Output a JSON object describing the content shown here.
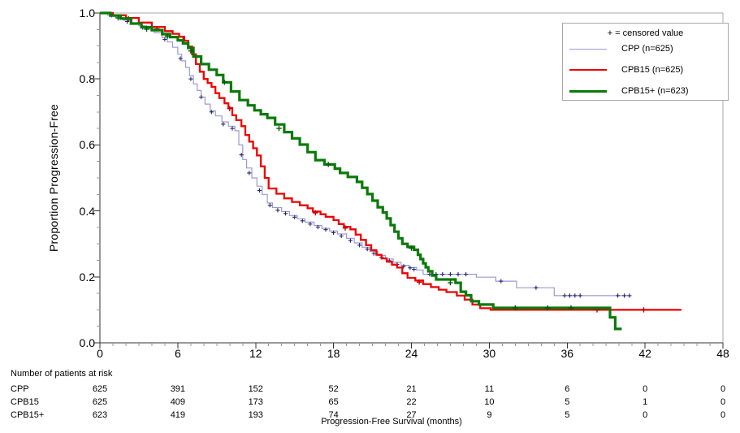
{
  "chart_data": {
    "type": "line",
    "subtype": "kaplan-meier-step",
    "title": "",
    "xlabel": "Progression-Free Survival (months)",
    "ylabel": "Proportion Progression-Free",
    "xlim": [
      0,
      48
    ],
    "ylim": [
      0.0,
      1.0
    ],
    "x_ticks": [
      0,
      6,
      12,
      18,
      24,
      30,
      36,
      42,
      48
    ],
    "x_minor_step": 1,
    "y_ticks": [
      0.0,
      0.2,
      0.4,
      0.6,
      0.8,
      1.0
    ],
    "y_tick_labels": [
      "0.0",
      "0.2",
      "0.4",
      "0.6",
      "0.8",
      "1.0"
    ],
    "y_minor_step": 0.05,
    "grid": false,
    "frame_color": "#a9a9a9",
    "axis_color": "#333333",
    "minor_tick_color": "#999999",
    "legend": {
      "position": "top-right-inside",
      "note": "+ = censored value"
    },
    "series": [
      {
        "name": "CPP (n=625)",
        "color": "#9a9ad2",
        "censor_color": "#26266e",
        "line_width": 1.2,
        "end": 40.8,
        "steps": [
          [
            0,
            1
          ],
          [
            0.6,
            0.993
          ],
          [
            1.2,
            0.986
          ],
          [
            1.8,
            0.978
          ],
          [
            2.4,
            0.97
          ],
          [
            3,
            0.961
          ],
          [
            3.6,
            0.951
          ],
          [
            4.2,
            0.94
          ],
          [
            4.8,
            0.925
          ],
          [
            5.2,
            0.912
          ],
          [
            5.6,
            0.896
          ],
          [
            6,
            0.875
          ],
          [
            6.3,
            0.855
          ],
          [
            6.6,
            0.835
          ],
          [
            6.9,
            0.81
          ],
          [
            7.2,
            0.785
          ],
          [
            7.5,
            0.765
          ],
          [
            7.8,
            0.745
          ],
          [
            8.1,
            0.724
          ],
          [
            8.5,
            0.703
          ],
          [
            8.9,
            0.688
          ],
          [
            9.4,
            0.67
          ],
          [
            9.9,
            0.657
          ],
          [
            10.4,
            0.643
          ],
          [
            10.7,
            0.6
          ],
          [
            11,
            0.556
          ],
          [
            11.3,
            0.53
          ],
          [
            11.7,
            0.5
          ],
          [
            12.1,
            0.475
          ],
          [
            12.5,
            0.45
          ],
          [
            12.9,
            0.424
          ],
          [
            13.3,
            0.41
          ],
          [
            14,
            0.398
          ],
          [
            14.6,
            0.386
          ],
          [
            15.2,
            0.376
          ],
          [
            15.8,
            0.366
          ],
          [
            16.5,
            0.356
          ],
          [
            17.1,
            0.347
          ],
          [
            17.7,
            0.339
          ],
          [
            18.3,
            0.33
          ],
          [
            19,
            0.317
          ],
          [
            19.6,
            0.303
          ],
          [
            20.2,
            0.29
          ],
          [
            20.8,
            0.277
          ],
          [
            21.4,
            0.265
          ],
          [
            22,
            0.254
          ],
          [
            22.6,
            0.244
          ],
          [
            23.2,
            0.235
          ],
          [
            23.8,
            0.228
          ],
          [
            24.4,
            0.221
          ],
          [
            24.9,
            0.208
          ],
          [
            29,
            0.199
          ],
          [
            30.5,
            0.187
          ],
          [
            32.1,
            0.167
          ],
          [
            35,
            0.143
          ]
        ],
        "censors": [
          [
            0.9,
            0.993
          ],
          [
            2.1,
            0.974
          ],
          [
            3.3,
            0.956
          ],
          [
            5,
            0.92
          ],
          [
            6.2,
            0.862
          ],
          [
            7,
            0.8
          ],
          [
            7.8,
            0.745
          ],
          [
            8.6,
            0.7
          ],
          [
            9.5,
            0.663
          ],
          [
            10.2,
            0.65
          ],
          [
            10.9,
            0.57
          ],
          [
            11.5,
            0.515
          ],
          [
            12.3,
            0.462
          ],
          [
            13.1,
            0.417
          ],
          [
            13.7,
            0.402
          ],
          [
            14.3,
            0.392
          ],
          [
            15,
            0.381
          ],
          [
            15.6,
            0.37
          ],
          [
            16.2,
            0.36
          ],
          [
            16.8,
            0.351
          ],
          [
            17.4,
            0.343
          ],
          [
            18,
            0.334
          ],
          [
            18.6,
            0.324
          ],
          [
            19.3,
            0.31
          ],
          [
            20,
            0.296
          ],
          [
            20.6,
            0.284
          ],
          [
            21.1,
            0.271
          ],
          [
            21.7,
            0.259
          ],
          [
            22.3,
            0.249
          ],
          [
            22.9,
            0.238
          ],
          [
            23.4,
            0.232
          ],
          [
            23.9,
            0.227
          ],
          [
            24.2,
            0.223
          ],
          [
            25.4,
            0.208
          ],
          [
            25.9,
            0.208
          ],
          [
            26.4,
            0.208
          ],
          [
            27,
            0.208
          ],
          [
            27.6,
            0.208
          ],
          [
            28.2,
            0.208
          ],
          [
            30.9,
            0.187
          ],
          [
            33.6,
            0.167
          ],
          [
            35.8,
            0.143
          ],
          [
            36.2,
            0.143
          ],
          [
            36.6,
            0.143
          ],
          [
            37,
            0.143
          ],
          [
            39.9,
            0.143
          ],
          [
            40.4,
            0.143
          ],
          [
            40.8,
            0.143
          ]
        ]
      },
      {
        "name": "CPB15 (n=625)",
        "color": "#ee0000",
        "censor_color": "#c40000",
        "line_width": 2.3,
        "end": 44.8,
        "steps": [
          [
            0,
            1
          ],
          [
            1,
            0.993
          ],
          [
            2,
            0.985
          ],
          [
            3,
            0.971
          ],
          [
            4,
            0.958
          ],
          [
            5,
            0.945
          ],
          [
            5.6,
            0.937
          ],
          [
            6.1,
            0.928
          ],
          [
            6.5,
            0.916
          ],
          [
            6.8,
            0.898
          ],
          [
            7.1,
            0.875
          ],
          [
            7.4,
            0.845
          ],
          [
            7.7,
            0.822
          ],
          [
            8,
            0.8
          ],
          [
            8.3,
            0.788
          ],
          [
            8.6,
            0.776
          ],
          [
            8.9,
            0.757
          ],
          [
            9.2,
            0.742
          ],
          [
            9.6,
            0.726
          ],
          [
            9.9,
            0.712
          ],
          [
            10.2,
            0.69
          ],
          [
            10.5,
            0.675
          ],
          [
            10.9,
            0.657
          ],
          [
            11.2,
            0.63
          ],
          [
            11.5,
            0.61
          ],
          [
            11.8,
            0.59
          ],
          [
            12.1,
            0.568
          ],
          [
            12.4,
            0.535
          ],
          [
            12.7,
            0.5
          ],
          [
            13,
            0.468
          ],
          [
            13.6,
            0.452
          ],
          [
            14.2,
            0.438
          ],
          [
            14.8,
            0.427
          ],
          [
            15.4,
            0.417
          ],
          [
            16,
            0.408
          ],
          [
            16.4,
            0.398
          ],
          [
            17,
            0.39
          ],
          [
            17.4,
            0.382
          ],
          [
            18,
            0.372
          ],
          [
            18.4,
            0.36
          ],
          [
            18.8,
            0.352
          ],
          [
            19.3,
            0.344
          ],
          [
            19.7,
            0.328
          ],
          [
            20.1,
            0.312
          ],
          [
            20.5,
            0.296
          ],
          [
            20.9,
            0.281
          ],
          [
            21.3,
            0.267
          ],
          [
            21.7,
            0.256
          ],
          [
            22.1,
            0.246
          ],
          [
            22.5,
            0.237
          ],
          [
            22.9,
            0.228
          ],
          [
            23.3,
            0.211
          ],
          [
            23.7,
            0.197
          ],
          [
            24.3,
            0.189
          ],
          [
            24.9,
            0.178
          ],
          [
            25.5,
            0.169
          ],
          [
            26.1,
            0.161
          ],
          [
            26.7,
            0.154
          ],
          [
            27.5,
            0.143
          ],
          [
            28.1,
            0.131
          ],
          [
            28.7,
            0.116
          ],
          [
            29.3,
            0.105
          ],
          [
            30.1,
            0.1
          ]
        ],
        "censors": [
          [
            2.2,
            0.983
          ],
          [
            4.4,
            0.952
          ],
          [
            6.4,
            0.918
          ],
          [
            10,
            0.71
          ],
          [
            16.6,
            0.394
          ],
          [
            18.9,
            0.348
          ],
          [
            24.6,
            0.184
          ],
          [
            38.3,
            0.1
          ],
          [
            41.9,
            0.1
          ]
        ]
      },
      {
        "name": "CPB15+ (n=623)",
        "color": "#0a7a0a",
        "censor_color": "#075807",
        "line_width": 3.2,
        "end": 40.2,
        "steps": [
          [
            0,
            1
          ],
          [
            0.8,
            0.992
          ],
          [
            1.6,
            0.983
          ],
          [
            2.4,
            0.968
          ],
          [
            3.2,
            0.957
          ],
          [
            4,
            0.948
          ],
          [
            4.8,
            0.936
          ],
          [
            5.4,
            0.927
          ],
          [
            6,
            0.917
          ],
          [
            6.4,
            0.908
          ],
          [
            6.8,
            0.894
          ],
          [
            7.2,
            0.868
          ],
          [
            7.8,
            0.845
          ],
          [
            8.4,
            0.828
          ],
          [
            9,
            0.812
          ],
          [
            9.5,
            0.79
          ],
          [
            10.1,
            0.762
          ],
          [
            10.75,
            0.736
          ],
          [
            11.4,
            0.72
          ],
          [
            11.9,
            0.705
          ],
          [
            12.4,
            0.693
          ],
          [
            12.9,
            0.682
          ],
          [
            13.5,
            0.662
          ],
          [
            14.2,
            0.639
          ],
          [
            14.8,
            0.62
          ],
          [
            15.4,
            0.601
          ],
          [
            16,
            0.578
          ],
          [
            16.6,
            0.554
          ],
          [
            17.3,
            0.541
          ],
          [
            18.1,
            0.528
          ],
          [
            18.5,
            0.515
          ],
          [
            19.1,
            0.503
          ],
          [
            19.8,
            0.488
          ],
          [
            20.2,
            0.47
          ],
          [
            20.6,
            0.451
          ],
          [
            21,
            0.431
          ],
          [
            21.4,
            0.411
          ],
          [
            21.8,
            0.395
          ],
          [
            22.1,
            0.377
          ],
          [
            22.4,
            0.357
          ],
          [
            22.7,
            0.337
          ],
          [
            23,
            0.317
          ],
          [
            23.3,
            0.3
          ],
          [
            23.7,
            0.291
          ],
          [
            24.2,
            0.282
          ],
          [
            24.5,
            0.267
          ],
          [
            24.7,
            0.254
          ],
          [
            24.9,
            0.241
          ],
          [
            25.1,
            0.229
          ],
          [
            25.3,
            0.217
          ],
          [
            25.6,
            0.204
          ],
          [
            25.9,
            0.192
          ],
          [
            27.4,
            0.182
          ],
          [
            27.8,
            0.155
          ],
          [
            28.2,
            0.144
          ],
          [
            28.6,
            0.126
          ],
          [
            29.2,
            0.116
          ],
          [
            30.3,
            0.106
          ],
          [
            39.3,
            0.077
          ],
          [
            39.7,
            0.042
          ]
        ],
        "censors": [
          [
            1.4,
            0.985
          ],
          [
            3.6,
            0.951
          ],
          [
            5.2,
            0.93
          ],
          [
            7,
            0.885
          ],
          [
            9.6,
            0.79
          ],
          [
            13.8,
            0.65
          ],
          [
            17.6,
            0.541
          ],
          [
            24,
            0.287
          ],
          [
            27,
            0.182
          ],
          [
            32,
            0.106
          ],
          [
            34.5,
            0.106
          ],
          [
            36.3,
            0.106
          ]
        ]
      }
    ],
    "at_risk": {
      "title": "Number of patients at risk",
      "columns": [
        0,
        6,
        12,
        18,
        24,
        30,
        36,
        42,
        48
      ],
      "rows": [
        {
          "label": "CPP",
          "values": [
            "625",
            "391",
            "152",
            "52",
            "21",
            "11",
            "6",
            "0",
            "0"
          ]
        },
        {
          "label": "CPB15",
          "values": [
            "625",
            "409",
            "173",
            "65",
            "22",
            "10",
            "5",
            "1",
            "0"
          ]
        },
        {
          "label": "CPB15+",
          "values": [
            "623",
            "419",
            "193",
            "74",
            "27",
            "9",
            "5",
            "0",
            "0"
          ]
        }
      ]
    }
  }
}
